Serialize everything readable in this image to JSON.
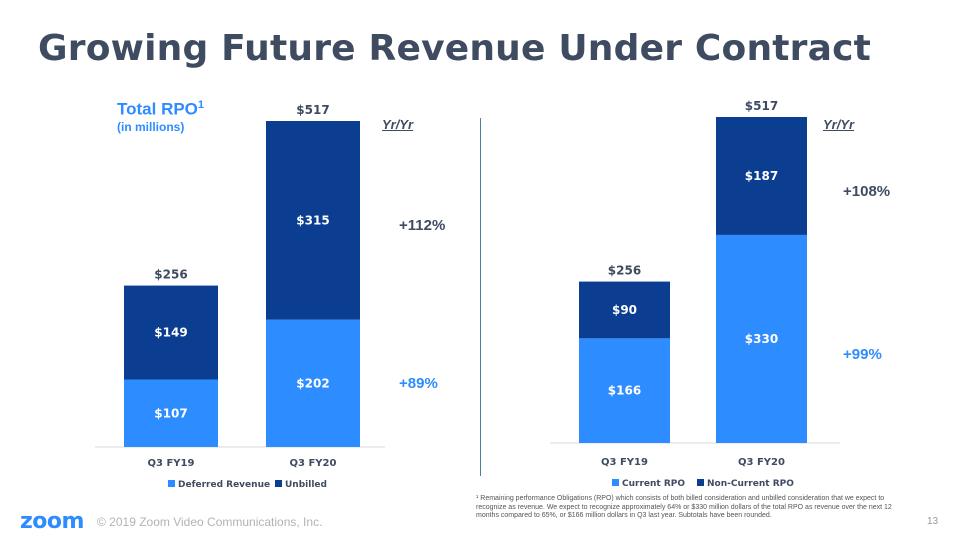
{
  "title": "Growing Future Revenue Under Contract",
  "rpo_title": "Total RPO",
  "rpo_superscript": "1",
  "rpo_subtitle": "(in millions)",
  "yryr_label": "Yr/Yr",
  "footer": {
    "logo": "zoom",
    "copyright": "© 2019 Zoom Video Communications, Inc.",
    "page_number": "13",
    "footnote": "¹ Remaining performance Obligations (RPO) which consists of both billed consideration and unbilled consideration that we expect to recognize as revenue. We expect to recognize approximately 64% or $330 million dollars of the total RPO as revenue over the next 12 months compared to 65%, or $166 million dollars in Q3 last year. Subtotals have been rounded."
  },
  "colors": {
    "light": "#2d8cff",
    "dark": "#0b3d91"
  },
  "chart_data": [
    {
      "type": "bar",
      "stacked": true,
      "categories": [
        "Q3 FY19",
        "Q3 FY20"
      ],
      "series": [
        {
          "name": "Deferred Revenue",
          "values": [
            107,
            202
          ],
          "labels": [
            "$107",
            "$202"
          ]
        },
        {
          "name": "Unbilled",
          "values": [
            149,
            315
          ],
          "labels": [
            "$149",
            "$315"
          ]
        }
      ],
      "totals": [
        256,
        517
      ],
      "total_labels": [
        "$256",
        "$517"
      ],
      "growth_labels": [
        "+89%",
        "+112%"
      ],
      "ylim": [
        0,
        520
      ]
    },
    {
      "type": "bar",
      "stacked": true,
      "categories": [
        "Q3 FY19",
        "Q3 FY20"
      ],
      "series": [
        {
          "name": "Current RPO",
          "values": [
            166,
            330
          ],
          "labels": [
            "$166",
            "$330"
          ]
        },
        {
          "name": "Non-Current RPO",
          "values": [
            90,
            187
          ],
          "labels": [
            "$90",
            "$187"
          ]
        }
      ],
      "totals": [
        256,
        517
      ],
      "total_labels": [
        "$256",
        "$517"
      ],
      "growth_labels": [
        "+99%",
        "+108%"
      ],
      "ylim": [
        0,
        520
      ]
    }
  ]
}
